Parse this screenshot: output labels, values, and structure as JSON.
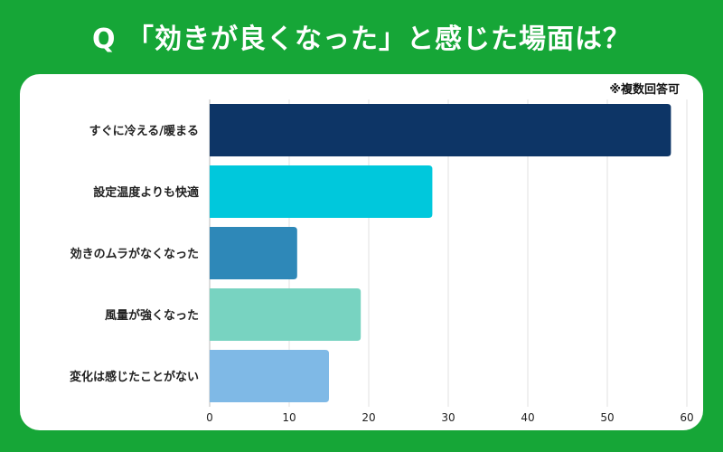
{
  "header": {
    "title": "Q 「効きが良くなった」と感じた場面は？"
  },
  "note": "※複数回答可",
  "chart_data": {
    "type": "bar",
    "orientation": "horizontal",
    "title": "Q 「効きが良くなった」と感じた場面は？",
    "categories": [
      "すぐに冷える/暖まる",
      "設定温度よりも快適",
      "効きのムラがなくなった",
      "風量が強くなった",
      "変化は感じたことがない"
    ],
    "values": [
      58,
      28,
      11,
      19,
      15
    ],
    "colors": [
      "#0d3566",
      "#00c8dc",
      "#2e88b8",
      "#78d3c1",
      "#7fb9e6"
    ],
    "xlim": [
      0,
      60
    ],
    "xticks": [
      0,
      10,
      20,
      30,
      40,
      50,
      60
    ],
    "xlabel": "",
    "ylabel": "",
    "grid": true,
    "legend": "none"
  }
}
